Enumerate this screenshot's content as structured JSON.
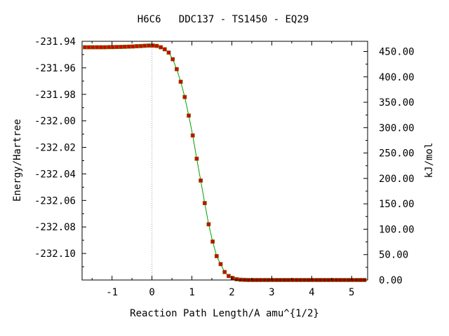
{
  "chart_data": {
    "type": "line",
    "title": "H6C6   DDC137 - TS1450 - EQ29",
    "xlabel": "Reaction Path Length/A amu^{1/2}",
    "ylabel": "Energy/Hartree",
    "y2label": "kJ/mol",
    "xlim": [
      -1.75,
      5.4
    ],
    "ylim": [
      -232.12,
      -231.94
    ],
    "y2lim": [
      0,
      470
    ],
    "grid": false,
    "x_ticks": [
      "-1",
      "0",
      "1",
      "2",
      "3",
      "4",
      "5"
    ],
    "y_ticks": [
      "-231.94",
      "-231.96",
      "-231.98",
      "-232.00",
      "-232.02",
      "-232.04",
      "-232.06",
      "-232.08",
      "-232.10"
    ],
    "y2_ticks": [
      "0.00",
      "50.00",
      "100.00",
      "150.00",
      "200.00",
      "250.00",
      "300.00",
      "350.00",
      "400.00",
      "450.00"
    ],
    "ts_marker_x": 0,
    "series": [
      {
        "x": [
          -1.68,
          -1.58,
          -1.48,
          -1.38,
          -1.28,
          -1.18,
          -1.08,
          -0.98,
          -0.88,
          -0.78,
          -0.68,
          -0.58,
          -0.48,
          -0.38,
          -0.28,
          -0.18,
          -0.08,
          0.02,
          0.12,
          0.22,
          0.32,
          0.42,
          0.52,
          0.62,
          0.72,
          0.82,
          0.92,
          1.02,
          1.12,
          1.22,
          1.32,
          1.42,
          1.52,
          1.62,
          1.72,
          1.82,
          1.92,
          2.02,
          2.12,
          2.22,
          2.32,
          2.42,
          2.52,
          2.62,
          2.72,
          2.82,
          2.92,
          3.02,
          3.12,
          3.22,
          3.32,
          3.42,
          3.52,
          3.62,
          3.72,
          3.82,
          3.92,
          4.02,
          4.12,
          4.22,
          4.32,
          4.42,
          4.52,
          4.62,
          4.72,
          4.82,
          4.92,
          5.02,
          5.12,
          5.22,
          5.32
        ],
        "values": [
          -231.9445,
          -231.9445,
          -231.9445,
          -231.9445,
          -231.9445,
          -231.9445,
          -231.9444,
          -231.9444,
          -231.9443,
          -231.9442,
          -231.9441,
          -231.944,
          -231.9439,
          -231.9437,
          -231.9436,
          -231.9434,
          -231.9432,
          -231.9432,
          -231.9435,
          -231.9445,
          -231.946,
          -231.9485,
          -231.9535,
          -231.961,
          -231.9705,
          -231.982,
          -231.996,
          -232.011,
          -232.0285,
          -232.045,
          -232.062,
          -232.078,
          -232.091,
          -232.102,
          -232.108,
          -232.114,
          -232.117,
          -232.1185,
          -232.1194,
          -232.1198,
          -232.1199,
          -232.12,
          -232.12,
          -232.12,
          -232.12,
          -232.12,
          -232.12,
          -232.12,
          -232.12,
          -232.12,
          -232.12,
          -232.12,
          -232.12,
          -232.12,
          -232.12,
          -232.12,
          -232.12,
          -232.12,
          -232.12,
          -232.12,
          -232.12,
          -232.12,
          -232.12,
          -232.12,
          -232.12,
          -232.12,
          -232.12,
          -232.12,
          -232.12,
          -232.12,
          -232.12
        ]
      }
    ],
    "colors": {
      "line": "#00a000",
      "marker_fill": "#d00000",
      "marker_edge": "#806000",
      "ts_marker": "#a0a0a0",
      "axis": "#000000"
    }
  }
}
